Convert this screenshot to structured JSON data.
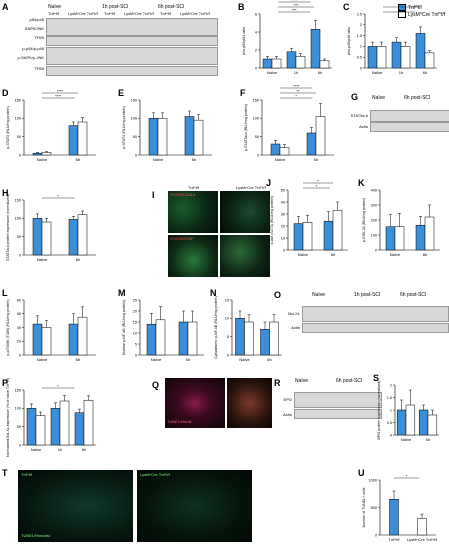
{
  "colors": {
    "tnf": "#3b8fd9",
    "lysm": "#ffffff"
  },
  "legend": {
    "tnf": "Tnf^f/f",
    "lysm": "LysM^Cre Tnf^f/f"
  },
  "panels": {
    "A": {
      "letter": "A",
      "groups": [
        "Naïve",
        "1h post-SCI",
        "6h post-SCI"
      ],
      "rows": [
        "p54/p46",
        "SAPK/JNK",
        "TFIIB",
        "p-p54/p-p46",
        "p-SAPK/p-JNK",
        "TFIIB"
      ]
    },
    "B": {
      "letter": "B",
      "ylabel": "pho-p54/p54 ratio"
    },
    "C": {
      "letter": "C",
      "ylabel": "pho-p46/p46 ratio"
    },
    "D": {
      "letter": "D",
      "ylabel": "p-STAT3 (RLU/mg protein)"
    },
    "E": {
      "letter": "E",
      "ylabel": "p-STAT4 (RLU/mg protein)"
    },
    "F": {
      "letter": "F",
      "ylabel": "p-STAT5a,b (RLU/mg protein)"
    },
    "G": {
      "letter": "G",
      "groups": [
        "Naïve",
        "6h post-SCI"
      ],
      "rows": [
        "STAT5a,b",
        "Actin"
      ]
    },
    "H": {
      "letter": "H",
      "ylabel": "STAT5a,b protein expression (normalized)"
    },
    "I": {
      "letter": "I",
      "cols": [
        "Tnf^f/f",
        "LysM^Cre Tnf^f/f"
      ],
      "stains": [
        "STAT5/CD11b",
        "STAT5/GFAP"
      ]
    },
    "J": {
      "letter": "J",
      "ylabel": "p-Akt (S473) (RLU/mg protein)"
    },
    "K": {
      "letter": "K",
      "ylabel": "p-GSK-3β (RLU/mg protein)"
    },
    "L": {
      "letter": "L",
      "ylabel": "p-p70S6K (T389) (RLU/mg protein)"
    },
    "M": {
      "letter": "M",
      "ylabel": "Nuclear p-NF-κB (RLU/mg protein)"
    },
    "N": {
      "letter": "N",
      "ylabel": "Cytoplasmic p-NF-κB (RLU/mg protein)"
    },
    "O": {
      "letter": "O",
      "groups": [
        "Naïve",
        "1h post-SCI",
        "6h post-SCI"
      ],
      "rows": [
        "Bcl-XL",
        "Actin"
      ]
    },
    "P": {
      "letter": "P",
      "ylabel": "Normalized Bcl-XL expression (% of naive Tnf^f/f)"
    },
    "Q": {
      "letter": "Q",
      "stains": [
        "TUNEL/NeuN"
      ]
    },
    "R": {
      "letter": "R",
      "groups": [
        "Naïve",
        "6h post-SCI"
      ],
      "rows": [
        "EPO",
        "Actin"
      ]
    },
    "S": {
      "letter": "S",
      "ylabel": "EPO protein expression (normalized)"
    },
    "T": {
      "letter": "T",
      "cols": [
        "Tnf^f/f",
        "LysM^Cre Tnf^f/f"
      ],
      "stains": [
        "TUNEL/Hoechst"
      ]
    },
    "U": {
      "letter": "U",
      "ylabel": "Number of TUNEL+ cells"
    }
  },
  "chart_data": [
    {
      "id": "B",
      "type": "bar",
      "categories": [
        "Naïve",
        "1h",
        "6h"
      ],
      "series": [
        {
          "name": "Tnf^f/f",
          "values": [
            1.0,
            1.8,
            4.3
          ]
        },
        {
          "name": "LysM^Cre Tnf^f/f",
          "values": [
            1.0,
            1.3,
            0.8
          ]
        }
      ],
      "errors": [
        [
          0.3,
          0.4,
          1.0
        ],
        [
          0.3,
          0.3,
          0.2
        ]
      ],
      "ylim": [
        0,
        6
      ],
      "ticks": [
        0,
        2,
        4,
        6
      ],
      "sig": [
        "***",
        "***",
        "****",
        "****"
      ]
    },
    {
      "id": "C",
      "type": "bar",
      "categories": [
        "Naïve",
        "1h",
        "6h"
      ],
      "series": [
        {
          "name": "Tnf^f/f",
          "values": [
            1.0,
            1.2,
            1.6
          ]
        },
        {
          "name": "LysM^Cre Tnf^f/f",
          "values": [
            1.0,
            1.0,
            0.7
          ]
        }
      ],
      "errors": [
        [
          0.2,
          0.2,
          0.3
        ],
        [
          0.2,
          0.2,
          0.1
        ]
      ],
      "ylim": [
        0,
        2.5
      ],
      "ticks": [
        0.0,
        0.5,
        1.0,
        1.5,
        2.0,
        2.5
      ],
      "sig": [
        "**",
        "****"
      ]
    },
    {
      "id": "D",
      "type": "bar",
      "categories": [
        "Naïve",
        "6h"
      ],
      "series": [
        {
          "name": "Tnf^f/f",
          "values": [
            5,
            80
          ]
        },
        {
          "name": "LysM^Cre Tnf^f/f",
          "values": [
            7,
            90
          ]
        }
      ],
      "errors": [
        [
          2,
          10
        ],
        [
          2,
          12
        ]
      ],
      "ylim": [
        0,
        150
      ],
      "ticks": [
        0,
        50,
        100,
        150
      ],
      "sig": [
        "****",
        "****"
      ]
    },
    {
      "id": "E",
      "type": "bar",
      "categories": [
        "Naïve",
        "6h"
      ],
      "series": [
        {
          "name": "Tnf^f/f",
          "values": [
            100,
            105
          ]
        },
        {
          "name": "LysM^Cre Tnf^f/f",
          "values": [
            100,
            95
          ]
        }
      ],
      "errors": [
        [
          15,
          15
        ],
        [
          15,
          15
        ]
      ],
      "ylim": [
        0,
        150
      ],
      "ticks": [
        0,
        50,
        100,
        150
      ],
      "sig": []
    },
    {
      "id": "F",
      "type": "bar",
      "categories": [
        "Naïve",
        "6h"
      ],
      "series": [
        {
          "name": "Tnf^f/f",
          "values": [
            30,
            60
          ]
        },
        {
          "name": "LysM^Cre Tnf^f/f",
          "values": [
            20,
            105
          ]
        }
      ],
      "errors": [
        [
          10,
          15
        ],
        [
          8,
          35
        ]
      ],
      "ylim": [
        0,
        150
      ],
      "ticks": [
        0,
        50,
        100,
        150
      ],
      "sig": [
        "*",
        "**",
        "****"
      ]
    },
    {
      "id": "H",
      "type": "bar",
      "categories": [
        "Naïve",
        "6h"
      ],
      "series": [
        {
          "name": "Tnf^f/f",
          "values": [
            100,
            97
          ]
        },
        {
          "name": "LysM^Cre Tnf^f/f",
          "values": [
            90,
            110
          ]
        }
      ],
      "errors": [
        [
          12,
          8
        ],
        [
          10,
          10
        ]
      ],
      "ylim": [
        0,
        150
      ],
      "ticks": [
        0,
        50,
        100,
        150
      ],
      "sig": [
        "*"
      ]
    },
    {
      "id": "J",
      "type": "bar",
      "categories": [
        "Naïve",
        "6h"
      ],
      "series": [
        {
          "name": "Tnf^f/f",
          "values": [
            22,
            24
          ]
        },
        {
          "name": "LysM^Cre Tnf^f/f",
          "values": [
            23,
            33
          ]
        }
      ],
      "errors": [
        [
          6,
          8
        ],
        [
          6,
          7
        ]
      ],
      "ylim": [
        0,
        50
      ],
      "ticks": [
        0,
        10,
        20,
        30,
        40,
        50
      ],
      "sig": [
        "*",
        "*"
      ]
    },
    {
      "id": "K",
      "type": "bar",
      "categories": [
        "Naïve",
        "6h"
      ],
      "series": [
        {
          "name": "Tnf^f/f",
          "values": [
            155,
            165
          ]
        },
        {
          "name": "LysM^Cre Tnf^f/f",
          "values": [
            155,
            220
          ]
        }
      ],
      "errors": [
        [
          80,
          60
        ],
        [
          90,
          80
        ]
      ],
      "ylim": [
        0,
        400
      ],
      "ticks": [
        0,
        100,
        200,
        300,
        400
      ],
      "sig": []
    },
    {
      "id": "L",
      "type": "bar",
      "categories": [
        "Naïve",
        "6h"
      ],
      "series": [
        {
          "name": "Tnf^f/f",
          "values": [
            45,
            45
          ]
        },
        {
          "name": "LysM^Cre Tnf^f/f",
          "values": [
            40,
            55
          ]
        }
      ],
      "errors": [
        [
          12,
          15
        ],
        [
          10,
          15
        ]
      ],
      "ylim": [
        0,
        80
      ],
      "ticks": [
        0,
        20,
        40,
        60,
        80
      ],
      "sig": []
    },
    {
      "id": "M",
      "type": "bar",
      "categories": [
        "Naïve",
        "6h"
      ],
      "series": [
        {
          "name": "Tnf^f/f",
          "values": [
            14,
            15
          ]
        },
        {
          "name": "LysM^Cre Tnf^f/f",
          "values": [
            16,
            15
          ]
        }
      ],
      "errors": [
        [
          5,
          5
        ],
        [
          6,
          5
        ]
      ],
      "ylim": [
        0,
        25
      ],
      "ticks": [
        0,
        5,
        10,
        15,
        20,
        25
      ],
      "sig": []
    },
    {
      "id": "N",
      "type": "bar",
      "categories": [
        "Naïve",
        "6h"
      ],
      "series": [
        {
          "name": "Tnf^f/f",
          "values": [
            10,
            7
          ]
        },
        {
          "name": "LysM^Cre Tnf^f/f",
          "values": [
            9,
            9
          ]
        }
      ],
      "errors": [
        [
          2,
          2
        ],
        [
          2,
          2
        ]
      ],
      "ylim": [
        0,
        15
      ],
      "ticks": [
        0,
        5,
        10,
        15
      ],
      "sig": []
    },
    {
      "id": "P",
      "type": "bar",
      "categories": [
        "Naïve",
        "1h",
        "6h"
      ],
      "series": [
        {
          "name": "Tnf^f/f",
          "values": [
            100,
            100,
            88
          ]
        },
        {
          "name": "LysM^Cre Tnf^f/f",
          "values": [
            80,
            120,
            122
          ]
        }
      ],
      "errors": [
        [
          12,
          15,
          10
        ],
        [
          10,
          15,
          12
        ]
      ],
      "ylim": [
        0,
        150
      ],
      "ticks": [
        0,
        50,
        100,
        150
      ],
      "sig": [
        "*"
      ]
    },
    {
      "id": "S",
      "type": "bar",
      "categories": [
        "Naïve",
        "6h"
      ],
      "series": [
        {
          "name": "Tnf^f/f",
          "values": [
            1.0,
            1.0
          ]
        },
        {
          "name": "LysM^Cre Tnf^f/f",
          "values": [
            1.2,
            0.8
          ]
        }
      ],
      "errors": [
        [
          0.4,
          0.2
        ],
        [
          0.6,
          0.2
        ]
      ],
      "ylim": [
        0,
        2.0
      ],
      "ticks": [
        0.0,
        0.5,
        1.0,
        1.5,
        2.0
      ],
      "sig": []
    },
    {
      "id": "U",
      "type": "bar",
      "categories": [
        "Tnf^f/f",
        "LysM^Cre Tnf^f/f"
      ],
      "series": [
        {
          "name": "cells",
          "values": [
            650,
            300
          ]
        }
      ],
      "errors": [
        [
          150,
          80
        ]
      ],
      "ylim": [
        0,
        1000
      ],
      "ticks": [
        0,
        500,
        1000
      ],
      "sig": [
        "*"
      ]
    }
  ]
}
